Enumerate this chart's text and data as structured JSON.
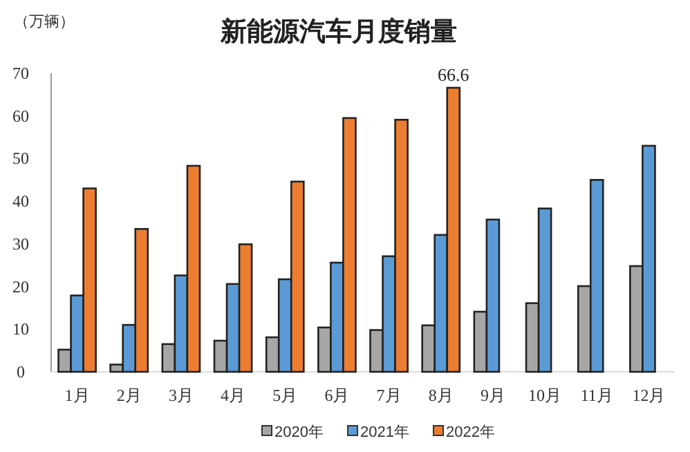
{
  "chart_data": {
    "type": "bar",
    "title": "新能源汽车月度销量",
    "ylabel": "（万辆）",
    "categories": [
      "1月",
      "2月",
      "3月",
      "4月",
      "5月",
      "6月",
      "7月",
      "8月",
      "9月",
      "10月",
      "11月",
      "12月"
    ],
    "series": [
      {
        "name": "2020年",
        "color": "#a6a6a6",
        "values": [
          5.2,
          1.7,
          6.5,
          7.3,
          8.1,
          10.4,
          9.8,
          10.9,
          14.1,
          16.1,
          20.1,
          24.8
        ]
      },
      {
        "name": "2021年",
        "color": "#5b9bd5",
        "values": [
          17.9,
          11.0,
          22.6,
          20.6,
          21.7,
          25.6,
          27.1,
          32.1,
          35.7,
          38.3,
          45.0,
          53.0
        ]
      },
      {
        "name": "2022年",
        "color": "#ed7d31",
        "values": [
          43.0,
          33.5,
          48.3,
          29.9,
          44.6,
          59.5,
          59.1,
          66.6,
          null,
          null,
          null,
          null
        ],
        "value_labels": [
          null,
          null,
          null,
          null,
          null,
          null,
          null,
          "66.6",
          null,
          null,
          null,
          null
        ]
      }
    ],
    "ylim": [
      0,
      70
    ],
    "yticks": [
      0,
      10,
      20,
      30,
      40,
      50,
      60,
      70
    ],
    "legend": "bottom"
  }
}
